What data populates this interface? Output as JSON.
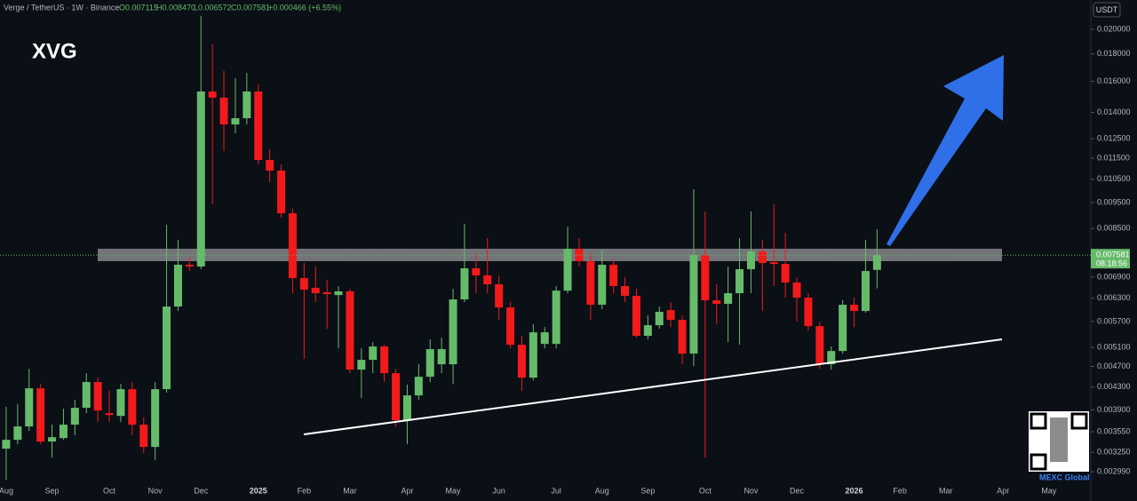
{
  "header": {
    "symbol": "Verge / TetherUS · 1W · Binance",
    "ohlc": [
      "O0.007115",
      "H0.008470",
      "L0.006572",
      "C0.007581"
    ],
    "change": "+0.000466 (+6.55%)"
  },
  "currency": "USDT",
  "countdown": "08:18:56",
  "watermark": "MEXC Global",
  "chart_data": {
    "type": "candlestick",
    "title": "XVG",
    "log_scale": true,
    "up_color": "#66bb6a",
    "down_color": "#f21a1a",
    "categories": [
      "Aug",
      null,
      null,
      null,
      "Sep",
      null,
      null,
      null,
      null,
      "Oct",
      null,
      null,
      null,
      "Nov",
      null,
      null,
      null,
      "Dec",
      null,
      null,
      null,
      null,
      "2025",
      null,
      null,
      null,
      "Feb",
      null,
      null,
      null,
      "Mar",
      null,
      null,
      null,
      null,
      "Apr",
      null,
      null,
      null,
      "May",
      null,
      null,
      null,
      "Jun",
      null,
      null,
      null,
      null,
      "Jul",
      null,
      null,
      null,
      "Aug",
      null,
      null,
      null,
      "Sep",
      null,
      null,
      null,
      null,
      "Oct",
      null,
      null,
      null,
      "Nov",
      null,
      null,
      null,
      "Dec",
      null,
      null,
      null,
      null,
      "2026",
      null,
      null,
      null,
      "Feb",
      null,
      null,
      null,
      "Mar",
      null,
      null,
      null,
      null,
      "Apr",
      null,
      null,
      null,
      "May",
      null,
      null,
      null
    ],
    "open": [
      0.003301,
      0.003429,
      0.003632,
      0.004279,
      0.003404,
      0.003455,
      0.00366,
      0.003935,
      0.004396,
      0.003845,
      0.0038,
      0.004263,
      0.00366,
      0.003326,
      0.004263,
      0.006079,
      0.007274,
      0.007219,
      0.01531,
      0.01491,
      0.01329,
      0.01365,
      0.01531,
      0.01141,
      0.0109,
      0.009076,
      0.006869,
      0.006586,
      0.006462,
      0.006386,
      0.006488,
      0.004636,
      0.004834,
      0.00512,
      0.004566,
      0.00373,
      0.00415,
      0.004496,
      0.004744,
      0.004744,
      0.006268,
      0.007164,
      0.006948,
      0.006688,
      0.006055,
      0.005159,
      0.004479,
      0.005177,
      0.005177,
      0.006509,
      0.007791,
      0.007384,
      0.006126,
      0.007274,
      0.006638,
      0.006365,
      0.00536,
      0.00561,
      0.005987,
      0.005741,
      0.004966,
      0.007583,
      0.006244,
      0.00615,
      0.006437,
      0.007136,
      0.007702,
      0.007357,
      0.007301,
      0.006739,
      0.006315,
      0.005588,
      0.004744,
      0.005022,
      0.006126,
      0.005964,
      0.007115,
      null,
      null,
      null,
      null,
      null,
      null,
      null,
      null,
      null,
      null,
      null,
      null,
      null,
      null,
      null,
      null,
      null,
      null
    ],
    "high": [
      0.00395,
      0.003995,
      0.004653,
      0.00436,
      0.00366,
      0.00392,
      0.004073,
      0.004566,
      0.004479,
      0.004231,
      0.00436,
      0.004396,
      0.003773,
      0.004396,
      0.008638,
      0.008094,
      0.007499,
      0.02118,
      0.01874,
      0.01672,
      0.01621,
      0.01659,
      0.01579,
      0.01195,
      0.01119,
      0.009249,
      0.007329,
      0.007219,
      0.006816,
      0.006638,
      0.006562,
      0.005081,
      0.005218,
      0.005159,
      0.004653,
      0.004346,
      0.004744,
      0.005279,
      0.005319,
      0.006562,
      0.008671,
      0.007642,
      0.008156,
      0.006948,
      0.006197,
      0.00536,
      0.005631,
      0.005566,
      0.006638,
      0.008571,
      0.008156,
      0.007642,
      0.007732,
      0.007443,
      0.006895,
      0.006562,
      0.005851,
      0.006079,
      0.006197,
      0.005851,
      0.01006,
      0.009145,
      0.006688,
      0.007219,
      0.008156,
      0.009145,
      0.008094,
      0.009429,
      0.008346,
      0.006895,
      0.006437,
      0.005697,
      0.00512,
      0.006244,
      0.006315,
      0.008094,
      0.00847,
      null,
      null,
      null,
      null,
      null,
      null,
      null,
      null,
      null,
      null,
      null,
      null,
      null,
      null,
      null,
      null,
      null,
      null
    ],
    "low": [
      0.002888,
      0.003365,
      0.003563,
      0.003365,
      0.003176,
      0.003429,
      0.003496,
      0.003845,
      0.003701,
      0.003701,
      0.003701,
      0.003496,
      0.003238,
      0.003141,
      0.004199,
      0.005964,
      0.007081,
      0.007136,
      0.00943,
      0.01186,
      0.01279,
      0.01329,
      0.01119,
      0.01037,
      0.008903,
      0.006437,
      0.004853,
      0.006197,
      0.005526,
      0.005081,
      0.004566,
      0.004102,
      0.004566,
      0.004395,
      0.003632,
      0.003365,
      0.004072,
      0.004395,
      0.004566,
      0.00436,
      0.006197,
      0.006437,
      0.006437,
      0.005741,
      0.005081,
      0.004231,
      0.004427,
      0.005081,
      0.005081,
      0.006437,
      0.007219,
      0.005741,
      0.00601,
      0.006437,
      0.006197,
      0.005319,
      0.005279,
      0.005526,
      0.005566,
      0.004744,
      0.004708,
      0.003176,
      0.005631,
      0.005218,
      0.005159,
      0.006437,
      0.005964,
      0.006638,
      0.006315,
      0.005697,
      0.005484,
      0.004653,
      0.004636,
      0.004966,
      0.005566,
      0.005919,
      0.006572,
      null,
      null,
      null,
      null,
      null,
      null,
      null,
      null,
      null,
      null,
      null,
      null,
      null,
      null,
      null,
      null,
      null,
      null
    ],
    "close": [
      0.003429,
      0.003632,
      0.004279,
      0.003404,
      0.003468,
      0.00366,
      0.003935,
      0.004396,
      0.00389,
      0.003815,
      0.004263,
      0.00366,
      0.003326,
      0.004263,
      0.006079,
      0.007274,
      0.007219,
      0.01531,
      0.01491,
      0.01329,
      0.01365,
      0.01531,
      0.01141,
      0.0109,
      0.009076,
      0.006869,
      0.006535,
      0.006437,
      0.006412,
      0.006488,
      0.004636,
      0.004834,
      0.00512,
      0.004566,
      0.00373,
      0.00415,
      0.004496,
      0.005062,
      0.005062,
      0.006268,
      0.007164,
      0.006948,
      0.006688,
      0.006055,
      0.005159,
      0.004479,
      0.005442,
      0.005442,
      0.006509,
      0.007791,
      0.007384,
      0.006126,
      0.007274,
      0.006638,
      0.006365,
      0.00536,
      0.00561,
      0.005942,
      0.005741,
      0.004966,
      0.007583,
      0.006244,
      0.00615,
      0.006437,
      0.007136,
      0.007702,
      0.007329,
      0.007301,
      0.006739,
      0.006315,
      0.005588,
      0.004744,
      0.005022,
      0.006126,
      0.005964,
      0.007081,
      0.007581,
      null,
      null,
      null,
      null,
      null,
      null,
      null,
      null,
      null,
      null,
      null,
      null,
      null,
      null,
      null,
      null,
      null,
      null
    ],
    "ylim": [
      0.002835,
      0.02268
    ],
    "yticks": [
      {
        "value": 0.02,
        "label": "0.020000"
      },
      {
        "value": 0.018,
        "label": "0.018000"
      },
      {
        "value": 0.016,
        "label": "0.016000"
      },
      {
        "value": 0.014,
        "label": "0.014000"
      },
      {
        "value": 0.0125,
        "label": "0.012500"
      },
      {
        "value": 0.0115,
        "label": "0.011500"
      },
      {
        "value": 0.0105,
        "label": "0.010500"
      },
      {
        "value": 0.0095,
        "label": "0.009500"
      },
      {
        "value": 0.0085,
        "label": "0.008500"
      },
      {
        "value": 0.0069,
        "label": "0.006900"
      },
      {
        "value": 0.0063,
        "label": "0.006300"
      },
      {
        "value": 0.0057,
        "label": "0.005700"
      },
      {
        "value": 0.0051,
        "label": "0.005100"
      },
      {
        "value": 0.0047,
        "label": "0.004700"
      },
      {
        "value": 0.0043,
        "label": "0.004300"
      },
      {
        "value": 0.0039,
        "label": "0.003900"
      },
      {
        "value": 0.00355,
        "label": "0.003550"
      },
      {
        "value": 0.00325,
        "label": "0.003250"
      },
      {
        "value": 0.00299,
        "label": "0.002990"
      }
    ]
  }
}
